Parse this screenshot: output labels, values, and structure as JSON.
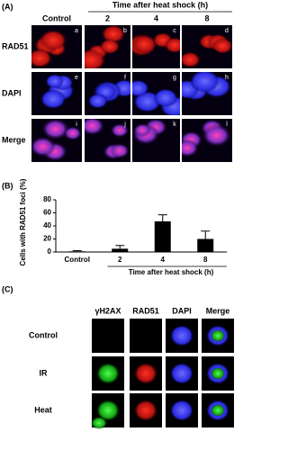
{
  "panel_a": {
    "label": "(A)",
    "time_header": "Time after heat shock (h)",
    "columns": [
      "Control",
      "2",
      "4",
      "8"
    ],
    "rows": [
      "RAD51",
      "DAPI",
      "Merge"
    ],
    "panel_letters": [
      [
        "a",
        "b",
        "c",
        "d"
      ],
      [
        "e",
        "f",
        "g",
        "h"
      ],
      [
        "i",
        "j",
        "k",
        "l"
      ]
    ]
  },
  "chart_data": {
    "type": "bar",
    "panel_label": "(B)",
    "y_label": "Cells with RAD51 foci (%)",
    "x_label": "Time after heat shock (h)",
    "categories": [
      "Control",
      "2",
      "4",
      "8"
    ],
    "values": [
      1,
      5,
      47,
      20
    ],
    "errors": [
      1,
      5,
      10,
      12
    ],
    "color": "#000000",
    "ylim": [
      0,
      80
    ],
    "yticks": [
      0,
      20,
      40,
      60,
      80
    ]
  },
  "panel_c": {
    "label": "(C)",
    "columns": [
      "γH2AX",
      "RAD51",
      "DAPI",
      "Merge"
    ],
    "rows": [
      "Control",
      "IR",
      "Heat"
    ]
  }
}
